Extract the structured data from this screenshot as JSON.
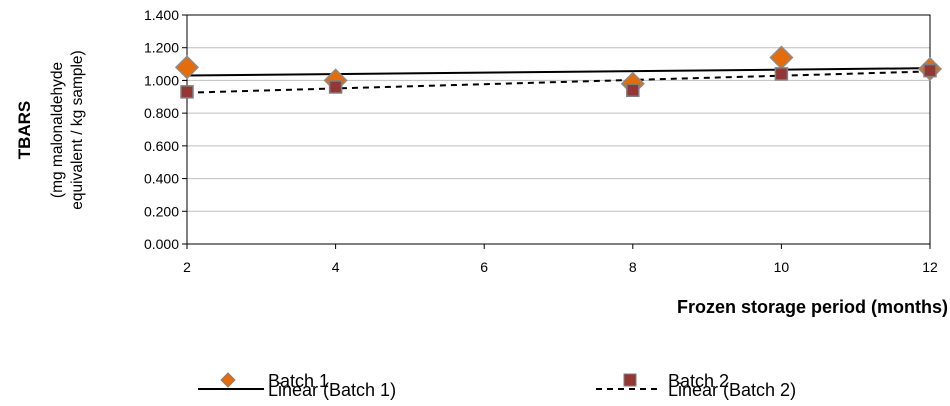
{
  "chart_data": {
    "type": "scatter",
    "x_axis": {
      "label": "Frozen storage period (months)",
      "ticks": [
        "2",
        "4",
        "6",
        "8",
        "10",
        "12"
      ],
      "range": [
        2,
        12
      ]
    },
    "y_axis": {
      "label_main": "TBARS",
      "label_sub_1": "(mg malonaldehyde",
      "label_sub_2": "equivalent / kg sample)",
      "ticks": [
        "0.000",
        "0.200",
        "0.400",
        "0.600",
        "0.800",
        "1.000",
        "1.200",
        "1.400"
      ],
      "range": [
        0,
        1.4
      ]
    },
    "grid": "horizontal",
    "legend_position": "bottom",
    "series": [
      {
        "name": "Batch 1",
        "marker": "diamond",
        "color": "#E46C0A",
        "x": [
          2,
          4,
          8,
          10,
          12
        ],
        "y": [
          1.08,
          1.0,
          0.98,
          1.14,
          1.07
        ]
      },
      {
        "name": "Batch 2",
        "marker": "square",
        "color": "#943634",
        "x": [
          2,
          4,
          8,
          10,
          12
        ],
        "y": [
          0.93,
          0.96,
          0.94,
          1.04,
          1.06
        ]
      }
    ],
    "trendlines": [
      {
        "name": "Linear (Batch 1)",
        "style": "solid",
        "y_start": 1.03,
        "y_end": 1.075
      },
      {
        "name": "Linear (Batch 2)",
        "style": "dashed",
        "y_start": 0.925,
        "y_end": 1.055
      }
    ]
  }
}
